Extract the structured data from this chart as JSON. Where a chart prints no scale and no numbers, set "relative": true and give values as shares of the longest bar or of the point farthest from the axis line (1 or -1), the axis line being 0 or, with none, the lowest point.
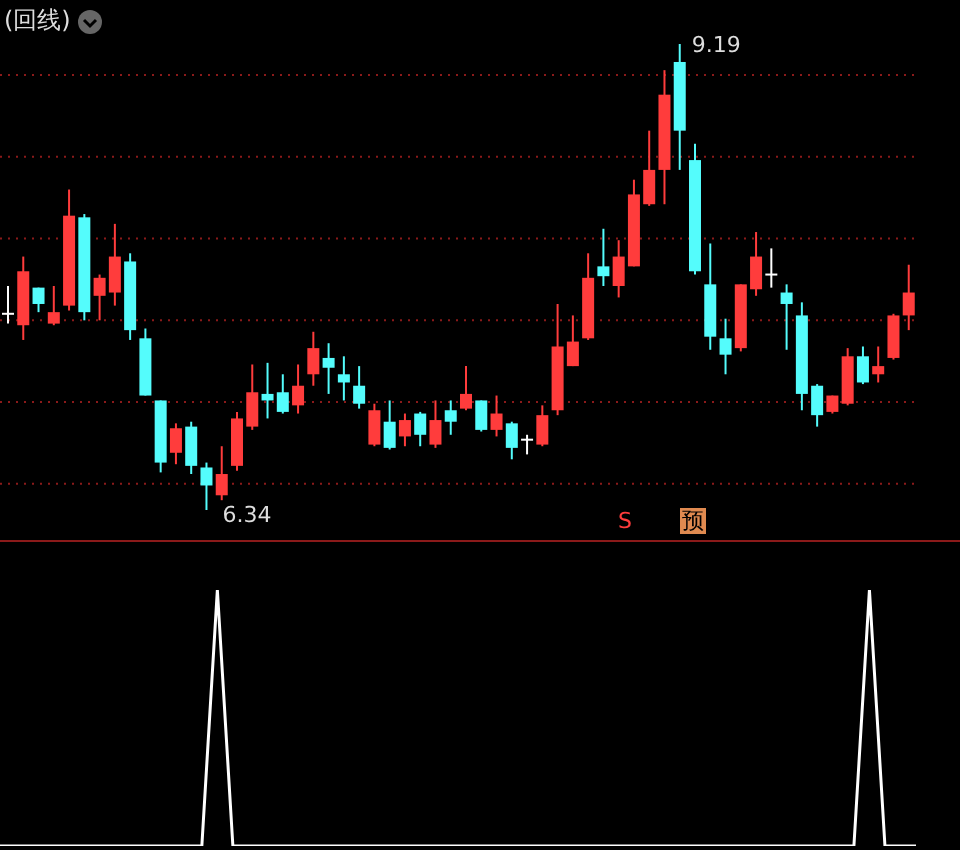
{
  "chart_data": [
    {
      "type": "candlestick",
      "title": "(回线)",
      "categories": [
        null,
        null,
        null,
        null,
        null,
        null,
        null,
        null,
        null,
        null,
        null,
        null,
        null,
        null,
        null,
        null,
        null,
        null,
        null,
        null,
        null,
        null,
        null,
        null,
        null,
        null,
        null,
        null,
        null,
        null,
        null,
        null,
        null,
        null,
        null,
        null,
        null,
        null,
        null,
        null,
        null,
        null,
        null,
        null,
        null,
        null,
        null,
        null,
        null,
        null,
        null,
        null,
        null,
        null,
        null,
        null,
        null,
        null,
        null,
        null
      ],
      "ohlc": [
        [
          7.54,
          7.71,
          7.48,
          7.54
        ],
        [
          7.47,
          7.89,
          7.38,
          7.8
        ],
        [
          7.7,
          7.7,
          7.55,
          7.6
        ],
        [
          7.48,
          7.71,
          7.47,
          7.55
        ],
        [
          7.59,
          8.3,
          7.56,
          8.14
        ],
        [
          8.13,
          8.15,
          7.5,
          7.55
        ],
        [
          7.65,
          7.78,
          7.5,
          7.76
        ],
        [
          7.67,
          8.09,
          7.59,
          7.89
        ],
        [
          7.86,
          7.91,
          7.38,
          7.44
        ],
        [
          7.39,
          7.45,
          7.04,
          7.04
        ],
        [
          7.01,
          7.01,
          6.57,
          6.63
        ],
        [
          6.69,
          6.87,
          6.62,
          6.84
        ],
        [
          6.85,
          6.88,
          6.56,
          6.61
        ],
        [
          6.6,
          6.63,
          6.34,
          6.49
        ],
        [
          6.43,
          6.73,
          6.4,
          6.56
        ],
        [
          6.61,
          6.94,
          6.58,
          6.9
        ],
        [
          6.85,
          7.23,
          6.83,
          7.06
        ],
        [
          7.05,
          7.24,
          6.9,
          7.01
        ],
        [
          7.06,
          7.17,
          6.93,
          6.94
        ],
        [
          6.98,
          7.23,
          6.93,
          7.1
        ],
        [
          7.17,
          7.43,
          7.1,
          7.33
        ],
        [
          7.27,
          7.36,
          7.05,
          7.21
        ],
        [
          7.17,
          7.28,
          7.01,
          7.12
        ],
        [
          7.1,
          7.22,
          6.96,
          6.99
        ],
        [
          6.74,
          6.99,
          6.73,
          6.95
        ],
        [
          6.88,
          7.01,
          6.71,
          6.72
        ],
        [
          6.79,
          6.93,
          6.73,
          6.89
        ],
        [
          6.93,
          6.94,
          6.73,
          6.8
        ],
        [
          6.74,
          7.01,
          6.72,
          6.89
        ],
        [
          6.95,
          7.01,
          6.8,
          6.88
        ],
        [
          6.96,
          7.22,
          6.95,
          7.05
        ],
        [
          7.01,
          7.01,
          6.82,
          6.83
        ],
        [
          6.83,
          7.04,
          6.79,
          6.93
        ],
        [
          6.87,
          6.88,
          6.65,
          6.72
        ],
        [
          6.77,
          6.8,
          6.68,
          6.77
        ],
        [
          6.74,
          6.98,
          6.73,
          6.92
        ],
        [
          6.95,
          7.6,
          6.92,
          7.34
        ],
        [
          7.22,
          7.53,
          7.22,
          7.37
        ],
        [
          7.39,
          7.91,
          7.38,
          7.76
        ],
        [
          7.83,
          8.06,
          7.71,
          7.77
        ],
        [
          7.71,
          7.99,
          7.64,
          7.89
        ],
        [
          7.83,
          8.36,
          7.83,
          8.27
        ],
        [
          8.21,
          8.66,
          8.2,
          8.42
        ],
        [
          8.42,
          9.03,
          8.21,
          8.88
        ],
        [
          9.08,
          9.19,
          8.42,
          8.66
        ],
        [
          8.48,
          8.58,
          7.78,
          7.8
        ],
        [
          7.72,
          7.97,
          7.32,
          7.4
        ],
        [
          7.39,
          7.51,
          7.17,
          7.29
        ],
        [
          7.33,
          7.72,
          7.31,
          7.72
        ],
        [
          7.69,
          8.04,
          7.65,
          7.89
        ],
        [
          7.78,
          7.94,
          7.7,
          7.78
        ],
        [
          7.67,
          7.72,
          7.32,
          7.6
        ],
        [
          7.53,
          7.61,
          6.95,
          7.05
        ],
        [
          7.1,
          7.11,
          6.85,
          6.92
        ],
        [
          6.94,
          7.04,
          6.93,
          7.04
        ],
        [
          6.99,
          7.33,
          6.98,
          7.28
        ],
        [
          7.28,
          7.34,
          7.11,
          7.12
        ],
        [
          7.17,
          7.34,
          7.12,
          7.22
        ],
        [
          7.27,
          7.54,
          7.26,
          7.53
        ],
        [
          7.53,
          7.84,
          7.44,
          7.67
        ]
      ],
      "colors": [
        "#ffffff",
        "#ff3c3c",
        "#54fcfc",
        "#ff3c3c",
        "#ff3c3c",
        "#54fcfc",
        "#ff3c3c",
        "#ff3c3c",
        "#54fcfc",
        "#54fcfc",
        "#54fcfc",
        "#ff3c3c",
        "#54fcfc",
        "#54fcfc",
        "#ff3c3c",
        "#ff3c3c",
        "#ff3c3c",
        "#54fcfc",
        "#54fcfc",
        "#ff3c3c",
        "#ff3c3c",
        "#54fcfc",
        "#54fcfc",
        "#54fcfc",
        "#ff3c3c",
        "#54fcfc",
        "#ff3c3c",
        "#54fcfc",
        "#ff3c3c",
        "#54fcfc",
        "#ff3c3c",
        "#54fcfc",
        "#ff3c3c",
        "#54fcfc",
        "#ffffff",
        "#ff3c3c",
        "#ff3c3c",
        "#ff3c3c",
        "#ff3c3c",
        "#54fcfc",
        "#ff3c3c",
        "#ff3c3c",
        "#ff3c3c",
        "#ff3c3c",
        "#54fcfc",
        "#54fcfc",
        "#54fcfc",
        "#54fcfc",
        "#ff3c3c",
        "#ff3c3c",
        "#ffffff",
        "#54fcfc",
        "#54fcfc",
        "#54fcfc",
        "#ff3c3c",
        "#ff3c3c",
        "#54fcfc",
        "#ff3c3c",
        "#ff3c3c",
        "#ff3c3c"
      ],
      "yticks": [
        {
          "value": 6.5,
          "label": null
        },
        {
          "value": 7,
          "label": null
        },
        {
          "value": 7.5,
          "label": null
        },
        {
          "value": 8,
          "label": null
        },
        {
          "value": 8.5,
          "label": null
        },
        {
          "value": 9,
          "label": null
        }
      ],
      "grid": "y",
      "tick_labels": false,
      "annotations": [
        "9.19",
        "6.34",
        "S",
        "预"
      ]
    },
    {
      "type": "line",
      "relative": true,
      "tick_labels": false,
      "categories": [
        null,
        null,
        null,
        null,
        null,
        null,
        null,
        null,
        null,
        null,
        null,
        null,
        null,
        null,
        null,
        null,
        null,
        null,
        null,
        null,
        null,
        null,
        null,
        null,
        null,
        null,
        null,
        null,
        null,
        null,
        null,
        null,
        null,
        null,
        null,
        null,
        null,
        null,
        null,
        null,
        null,
        null,
        null,
        null,
        null,
        null,
        null,
        null,
        null,
        null,
        null,
        null,
        null,
        null,
        null,
        null,
        null,
        null,
        null,
        null
      ],
      "series": [
        {
          "color": "#ffffff",
          "values": [
            0,
            0,
            0,
            0,
            0,
            0,
            0,
            0,
            0,
            0,
            0,
            0,
            0,
            0,
            1,
            0,
            0,
            0,
            0,
            0,
            0,
            0,
            0,
            0,
            0,
            0,
            0,
            0,
            0,
            0,
            0,
            0,
            0,
            0,
            0,
            0,
            0,
            0,
            0,
            0,
            0,
            0,
            0,
            0,
            0,
            0,
            0,
            0,
            0,
            0,
            0,
            0,
            0,
            0,
            0,
            0,
            1,
            0,
            0,
            0
          ]
        }
      ]
    }
  ]
}
